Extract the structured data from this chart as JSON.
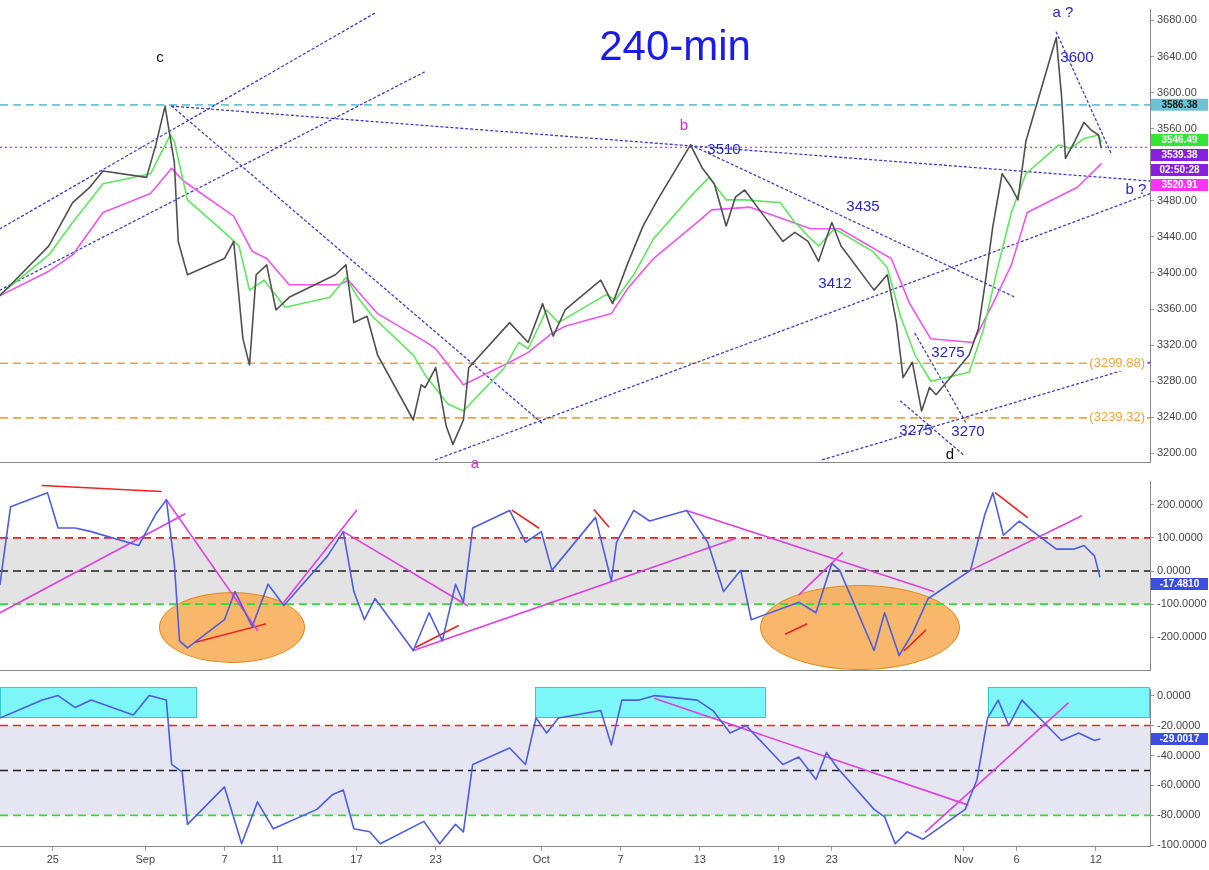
{
  "chart_data": [
    {
      "type": "line",
      "title": "240-min",
      "marker": "none",
      "tick_labels": "y",
      "xlim": [
        "--08-21T00:00",
        "--11-16T02:24"
      ],
      "ylim": [
        3190,
        3692
      ],
      "yticks": [
        {
          "value": 3200,
          "label": "3200.00"
        },
        {
          "value": 3240,
          "label": "3240.00"
        },
        {
          "value": 3280,
          "label": "3280.00"
        },
        {
          "value": 3320,
          "label": "3320.00"
        },
        {
          "value": 3360,
          "label": "3360.00"
        },
        {
          "value": 3400,
          "label": "3400.00"
        },
        {
          "value": 3440,
          "label": "3440.00"
        },
        {
          "value": 3480,
          "label": "3480.00"
        },
        {
          "value": 3560,
          "label": "3560.00"
        },
        {
          "value": 3600,
          "label": "3600.00"
        },
        {
          "value": 3640,
          "label": "3640.00"
        },
        {
          "value": 3680,
          "label": "3680.00"
        }
      ],
      "series": [
        {
          "color": "#505050",
          "x": [
            "--08-21T00:00",
            "--08-24T16:48",
            "--08-26T12:00",
            "--08-27T19:12",
            "--08-28T19:12",
            "--09-01T02:24",
            "--09-01T19:12",
            "--09-02T12:00",
            "--09-03T04:48",
            "--09-03T12:00",
            "--09-04T04:48",
            "--09-07T00:00",
            "--09-07T16:48",
            "--09-08T09:36",
            "--09-08T21:36",
            "--09-09T09:36",
            "--09-10T04:48",
            "--09-10T21:36",
            "--09-11T21:36",
            "--09-15T09:36",
            "--09-16T04:48",
            "--09-16T19:12",
            "--09-17T19:12",
            "--09-18T14:24",
            "--09-21T07:12",
            "--09-21T21:36",
            "--09-22T04:48",
            "--09-23T00:00",
            "--09-23T19:12",
            "--09-24T07:12",
            "--09-25T02:24",
            "--09-25T12:00",
            "--09-28T14:24",
            "--09-30T00:00",
            "--10-01T02:24",
            "--10-01T21:36",
            "--10-02T19:12",
            "--10-05T12:00",
            "--10-06T09:36",
            "--10-07T12:00",
            "--10-08T16:48",
            "--10-09T19:12",
            "--10-12T07:12",
            "--10-13T04:48",
            "--10-14T02:24",
            "--10-15T00:00",
            "--10-15T16:48",
            "--10-16T09:36",
            "--10-19T07:12",
            "--10-20T04:48",
            "--10-21T04:48",
            "--10-21T14:24",
            "--10-22T00:00",
            "--10-23T00:00",
            "--10-23T16:48",
            "--10-26T04:48",
            "--10-27T04:48",
            "--10-27T21:36",
            "--10-28T09:36",
            "--10-29T02:24",
            "--10-29T19:12",
            "--10-30T09:36",
            "--10-30T21:36",
            "--11-02T09:36",
            "--11-03T02:24",
            "--11-03T14:24",
            "--11-04T04:48",
            "--11-04T21:36",
            "--11-05T14:24",
            "--11-06T02:24",
            "--11-06T16:48",
            "--11-09T00:00",
            "--11-09T09:36",
            "--11-09T16:48",
            "--11-10T09:36",
            "--11-11T02:24",
            "--11-11T14:24",
            "--11-12T04:48",
            "--11-12T09:36"
          ],
          "values": [
            3375,
            3430,
            3478,
            3495,
            3513,
            3506,
            3542,
            3585,
            3523,
            3435,
            3398,
            3416,
            3435,
            3327,
            3298,
            3398,
            3409,
            3359,
            3373,
            3398,
            3409,
            3345,
            3352,
            3309,
            3237,
            3276,
            3273,
            3295,
            3230,
            3210,
            3237,
            3295,
            3345,
            3323,
            3366,
            3330,
            3359,
            3392,
            3366,
            3409,
            3452,
            3481,
            3542,
            3516,
            3499,
            3452,
            3484,
            3492,
            3435,
            3445,
            3435,
            3424,
            3413,
            3456,
            3430,
            3381,
            3398,
            3345,
            3284,
            3301,
            3247,
            3273,
            3265,
            3309,
            3338,
            3387,
            3452,
            3510,
            3495,
            3481,
            3546,
            3661,
            3596,
            3527,
            3546,
            3567,
            3559,
            3553,
            3539
          ]
        },
        {
          "color": "#5ee65e",
          "x": [
            "--08-21T00:00",
            "--08-24T16:48",
            "--08-26T12:00",
            "--08-28T19:12",
            "--09-01T09:36",
            "--09-02T21:36",
            "--09-03T04:48",
            "--09-04T04:48",
            "--09-07T00:00",
            "--09-08T02:24",
            "--09-08T21:36",
            "--09-10T00:00",
            "--09-11T14:24",
            "--09-15T00:00",
            "--09-16T04:48",
            "--09-17T02:24",
            "--09-18T04:48",
            "--09-21T07:12",
            "--09-22T04:48",
            "--09-23T21:36",
            "--09-25T02:24",
            "--09-28T04:48",
            "--09-29T07:12",
            "--09-30T00:00",
            "--10-01T09:36",
            "--10-02T07:12",
            "--10-05T21:36",
            "--10-06T14:24",
            "--10-08T00:00",
            "--10-09T12:00",
            "--10-12T12:00",
            "--10-13T16:48",
            "--10-15T00:00",
            "--10-16T09:36",
            "--10-19T02:24",
            "--10-20T04:48",
            "--10-20T12:00",
            "--10-21T09:36",
            "--10-22T00:00",
            "--10-23T04:48",
            "--10-26T02:24",
            "--10-27T04:48",
            "--10-28T04:48",
            "--10-29T07:12",
            "--10-30T12:00",
            "--11-02T09:36",
            "--11-03T12:00",
            "--11-04T12:00",
            "--11-05T14:24",
            "--11-06T16:48",
            "--11-09T04:48",
            "--11-10T02:24",
            "--11-11T02:24",
            "--11-12T04:48",
            "--11-12T09:36"
          ],
          "values": [
            3376,
            3420,
            3456,
            3499,
            3510,
            3553,
            3546,
            3481,
            3445,
            3430,
            3381,
            3392,
            3362,
            3373,
            3395,
            3373,
            3352,
            3309,
            3287,
            3255,
            3247,
            3295,
            3323,
            3316,
            3359,
            3345,
            3376,
            3370,
            3398,
            3438,
            3488,
            3506,
            3481,
            3481,
            3478,
            3456,
            3452,
            3438,
            3430,
            3449,
            3424,
            3406,
            3352,
            3309,
            3280,
            3290,
            3338,
            3402,
            3467,
            3510,
            3542,
            3538,
            3549,
            3553,
            3546
          ]
        },
        {
          "color": "#ee55ee",
          "x": [
            "--08-21T00:00",
            "--08-24T16:48",
            "--08-26T12:00",
            "--08-28T19:12",
            "--09-01T09:36",
            "--09-03T00:00",
            "--09-03T21:36",
            "--09-07T16:48",
            "--09-09T02:24",
            "--09-10T04:48",
            "--09-11T21:36",
            "--09-15T16:48",
            "--09-16T09:36",
            "--09-17T12:00",
            "--09-18T14:24",
            "--09-22T07:12",
            "--09-23T00:00",
            "--09-25T02:24",
            "--09-28T14:24",
            "--09-30T00:00",
            "--10-01T19:12",
            "--10-02T19:12",
            "--10-06T07:12",
            "--10-07T14:24",
            "--10-09T12:00",
            "--10-12T19:12",
            "--10-13T21:36",
            "--10-16T19:12",
            "--10-21T09:36",
            "--10-22T00:00",
            "--10-23T14:24",
            "--10-27T12:00",
            "--10-28T21:36",
            "--10-30T12:00",
            "--11-02T16:48",
            "--11-04T04:48",
            "--11-05T14:24",
            "--11-06T19:12",
            "--11-10T14:24",
            "--11-12T09:36"
          ],
          "values": [
            3375,
            3402,
            3420,
            3467,
            3488,
            3516,
            3502,
            3463,
            3424,
            3416,
            3387,
            3387,
            3392,
            3373,
            3355,
            3323,
            3316,
            3276,
            3301,
            3312,
            3333,
            3341,
            3355,
            3384,
            3416,
            3456,
            3470,
            3473,
            3449,
            3449,
            3449,
            3416,
            3366,
            3327,
            3323,
            3366,
            3409,
            3467,
            3495,
            3521
          ]
        },
        {
          "type": "line",
          "color": "#3b3bd0",
          "line_style": "dotted",
          "x": [
            "--08-21T00:00",
            "--09-18T12:00"
          ],
          "values": [
            3449,
            3689
          ]
        },
        {
          "type": "line",
          "color": "#3b3bd0",
          "line_style": "dotted",
          "x": [
            "--08-21T00:00",
            "--09-22T07:12"
          ],
          "values": [
            3381,
            3624
          ]
        },
        {
          "type": "line",
          "color": "#3b3bd0",
          "line_style": "dotted",
          "x": [
            "--09-03T00:00",
            "--10-01T02:24"
          ],
          "values": [
            3585,
            3233
          ]
        },
        {
          "type": "line",
          "color": "#3b3bd0",
          "line_style": "dotted",
          "x": [
            "--09-03T00:00",
            "--11-16T02:24"
          ],
          "values": [
            3585,
            3502
          ]
        },
        {
          "type": "line",
          "color": "#3b3bd0",
          "line_style": "dotted",
          "x": [
            "--09-23T00:00",
            "--11-16T02:24"
          ],
          "values": [
            3193,
            3488
          ]
        },
        {
          "type": "line",
          "color": "#3b3bd0",
          "line_style": "dotted",
          "x": [
            "--10-22T07:12",
            "--11-16T02:24"
          ],
          "values": [
            3193,
            3301
          ]
        },
        {
          "type": "line",
          "color": "#3b3bd0",
          "line_style": "dotted",
          "x": [
            "--10-12T07:12",
            "--11-05T21:36"
          ],
          "values": [
            3542,
            3373
          ]
        },
        {
          "type": "line",
          "color": "#3b3bd0",
          "line_style": "dotted",
          "x": [
            "--11-09T00:00",
            "--11-13T04:48"
          ],
          "values": [
            3667,
            3531
          ]
        },
        {
          "type": "line",
          "color": "#3b3bd0",
          "line_style": "dotted",
          "x": [
            "--10-29T07:12",
            "--11-02T04:48"
          ],
          "values": [
            3333,
            3233
          ]
        },
        {
          "type": "line",
          "color": "#3b3bd0",
          "line_style": "dotted",
          "x": [
            "--10-28T04:48",
            "--11-02T00:00"
          ],
          "values": [
            3258,
            3198
          ]
        }
      ],
      "ref_lines": [
        {
          "axis": "y",
          "value": 3586.38,
          "label": "3586.38",
          "color": "#6cc3d3",
          "line_style": "dashed"
        },
        {
          "axis": "y",
          "value": 3539.38,
          "color": "#8a1ee0",
          "line_style": "dotted"
        },
        {
          "axis": "y",
          "value": 3299.88,
          "label": "(3299.88)",
          "color": "#f2a43a",
          "line_style": "dashed"
        },
        {
          "axis": "y",
          "value": 3239.32,
          "label": "(3239.32)",
          "color": "#f2a43a",
          "line_style": "dashed"
        }
      ],
      "annotations": [
        "3546.49",
        "3539.38",
        "02:50:28",
        "3520.91",
        "c",
        "b",
        "3510",
        "3435",
        "3412",
        "3275",
        "3275",
        "3270",
        "d",
        "a",
        "a ?",
        "3600",
        "b ?"
      ]
    },
    {
      "type": "line",
      "marker": "none",
      "tick_labels": "y",
      "xlim": [
        "--08-21T00:00",
        "--11-16T02:24"
      ],
      "ylim": [
        -300,
        270
      ],
      "yticks": [
        {
          "value": -200,
          "label": "-200.0000"
        },
        {
          "value": -100,
          "label": "-100.0000"
        },
        {
          "value": 0,
          "label": "0.0000"
        },
        {
          "value": 100,
          "label": "100.0000"
        },
        {
          "value": 200,
          "label": "200.0000"
        }
      ],
      "bands": [
        {
          "axis": "y",
          "from": -100,
          "to": 100,
          "color": "#e3e3e3"
        }
      ],
      "ref_lines": [
        {
          "axis": "y",
          "value": 100,
          "color": "#ee2222",
          "line_style": "dashed"
        },
        {
          "axis": "y",
          "value": 0,
          "color": "#222222",
          "line_style": "dashed"
        },
        {
          "axis": "y",
          "value": -100,
          "color": "#33dd33",
          "line_style": "dashed"
        }
      ],
      "annotations": [
        "-17.4810"
      ],
      "series": [
        {
          "color": "#4d5ee0",
          "x": [
            "--08-21T00:00",
            "--08-21T19:12",
            "--08-24T14:24",
            "--08-25T09:36",
            "--08-26T16:48",
            "--08-27T21:36",
            "--08-31T12:00",
            "--09-01T19:12",
            "--09-02T14:24",
            "--09-03T04:48",
            "--09-03T14:24",
            "--09-04T04:48",
            "--09-07T00:00",
            "--09-07T19:12",
            "--09-09T02:24",
            "--09-10T07:12",
            "--09-11T12:00",
            "--09-14T19:12",
            "--09-16T00:00",
            "--09-16T19:12",
            "--09-17T14:24",
            "--09-18T09:36",
            "--09-21T07:12",
            "--09-22T12:00",
            "--09-23T12:00",
            "--09-24T12:00",
            "--09-25T02:24",
            "--09-25T19:12",
            "--09-28T14:24",
            "--09-29T19:12",
            "--10-01T00:00",
            "--10-01T19:12",
            "--10-05T02:24",
            "--10-06T07:12",
            "--10-06T16:48",
            "--10-08T00:00",
            "--10-09T04:48",
            "--10-12T00:00",
            "--10-13T14:24",
            "--10-14T19:12",
            "--10-16T02:24",
            "--10-16T21:36",
            "--10-20T12:00",
            "--10-21T19:12",
            "--10-23T00:00",
            "--10-23T14:24",
            "--10-26T04:48",
            "--10-27T00:00",
            "--10-28T02:24",
            "--10-29T02:24",
            "--10-30T07:12",
            "--11-02T12:00",
            "--11-03T14:24",
            "--11-04T04:48",
            "--11-05T00:00",
            "--11-06T04:48",
            "--11-09T00:00",
            "--11-10T07:12",
            "--11-11T02:24",
            "--11-11T21:36",
            "--11-12T07:12"
          ],
          "values": [
            -40,
            194,
            236,
            130,
            130,
            119,
            77,
            172,
            215,
            23,
            -211,
            -232,
            -147,
            -62,
            -168,
            -40,
            -104,
            45,
            119,
            -62,
            -147,
            -83,
            -240,
            -126,
            -211,
            -40,
            -94,
            130,
            183,
            87,
            119,
            2,
            162,
            -30,
            87,
            183,
            151,
            183,
            87,
            -62,
            2,
            -147,
            -94,
            -126,
            23,
            2,
            -240,
            -126,
            -255,
            -189,
            -83,
            2,
            172,
            236,
            108,
            151,
            66,
            66,
            77,
            45,
            -17
          ]
        },
        {
          "type": "line",
          "color": "#e040e0",
          "x": [
            "--08-21T00:00",
            "--09-04T00:00"
          ],
          "values": [
            -126,
            172
          ]
        },
        {
          "type": "line",
          "color": "#e040e0",
          "x": [
            "--09-02T14:24",
            "--09-09T12:00"
          ],
          "values": [
            215,
            -179
          ]
        },
        {
          "type": "line",
          "color": "#e040e0",
          "x": [
            "--09-11T12:00",
            "--09-17T00:00"
          ],
          "values": [
            -94,
            183
          ]
        },
        {
          "type": "line",
          "color": "#e040e0",
          "x": [
            "--09-16T00:00",
            "--09-25T09:36"
          ],
          "values": [
            119,
            -104
          ]
        },
        {
          "type": "line",
          "color": "#e040e0",
          "x": [
            "--09-21T07:12",
            "--10-15T16:48"
          ],
          "values": [
            -240,
            98
          ]
        },
        {
          "type": "line",
          "color": "#e040e0",
          "x": [
            "--10-12T00:00",
            "--10-30T16:48"
          ],
          "values": [
            183,
            -62
          ]
        },
        {
          "type": "line",
          "color": "#e040e0",
          "x": [
            "--10-20T12:00",
            "--10-23T19:12"
          ],
          "values": [
            -72,
            55
          ]
        },
        {
          "type": "line",
          "color": "#e040e0",
          "x": [
            "--11-02T12:00",
            "--11-10T21:36"
          ],
          "values": [
            2,
            166
          ]
        },
        {
          "type": "line",
          "color": "#ee2222",
          "x": [
            "--08-24T04:48",
            "--09-02T04:48"
          ],
          "values": [
            258,
            240
          ]
        },
        {
          "type": "line",
          "color": "#ee2222",
          "x": [
            "--09-04T19:12",
            "--09-10T02:24"
          ],
          "values": [
            -215,
            -160
          ]
        },
        {
          "type": "line",
          "color": "#ee2222",
          "x": [
            "--09-21T12:00",
            "--09-24T16:48"
          ],
          "values": [
            -230,
            -165
          ]
        },
        {
          "type": "line",
          "color": "#ee2222",
          "x": [
            "--09-28T19:12",
            "--09-30T19:12"
          ],
          "values": [
            183,
            130
          ]
        },
        {
          "type": "line",
          "color": "#ee2222",
          "x": [
            "--10-05T00:00",
            "--10-06T02:24"
          ],
          "values": [
            185,
            134
          ]
        },
        {
          "type": "line",
          "color": "#ee2222",
          "x": [
            "--10-19T12:00",
            "--10-21T02:24"
          ],
          "values": [
            -190,
            -160
          ]
        },
        {
          "type": "line",
          "color": "#ee2222",
          "x": [
            "--10-28T12:00",
            "--10-30T02:24"
          ],
          "values": [
            -240,
            -179
          ]
        },
        {
          "type": "line",
          "color": "#ee2222",
          "x": [
            "--11-04T09:36",
            "--11-06T19:12"
          ],
          "values": [
            236,
            162
          ]
        }
      ]
    },
    {
      "type": "line",
      "marker": "none",
      "xlim": [
        "--08-21T00:00",
        "--11-16T02:24"
      ],
      "ylim": [
        -101,
        4
      ],
      "xticks": [
        {
          "value": "--08-25",
          "label": "25"
        },
        {
          "value": "--09-01",
          "label": "Sep"
        },
        {
          "value": "--09-07",
          "label": "7"
        },
        {
          "value": "--09-11",
          "label": "11"
        },
        {
          "value": "--09-17",
          "label": "17"
        },
        {
          "value": "--09-23",
          "label": "23"
        },
        {
          "value": "--10-01",
          "label": "Oct"
        },
        {
          "value": "--10-07",
          "label": "7"
        },
        {
          "value": "--10-13",
          "label": "13"
        },
        {
          "value": "--10-19",
          "label": "19"
        },
        {
          "value": "--10-23",
          "label": "23"
        },
        {
          "value": "--11-02",
          "label": "Nov"
        },
        {
          "value": "--11-06",
          "label": "6"
        },
        {
          "value": "--11-12",
          "label": "12"
        }
      ],
      "yticks": [
        {
          "value": -100,
          "label": "-100.0000"
        },
        {
          "value": -80,
          "label": "-80.0000"
        },
        {
          "value": -60,
          "label": "-60.0000"
        },
        {
          "value": -40,
          "label": "-40.0000"
        },
        {
          "value": -20,
          "label": "-20.0000"
        },
        {
          "value": 0,
          "label": "0.0000"
        }
      ],
      "bands": [
        {
          "axis": "y",
          "from": -80,
          "to": -20,
          "color": "#e6e6f2"
        }
      ],
      "ref_lines": [
        {
          "axis": "y",
          "value": -20,
          "color": "#ee2222",
          "line_style": "dashed"
        },
        {
          "axis": "y",
          "value": -50,
          "color": "#222222",
          "line_style": "dashed"
        },
        {
          "axis": "y",
          "value": -80,
          "color": "#33dd33",
          "line_style": "dashed"
        }
      ],
      "annotations": [
        "-29.0017"
      ],
      "series": [
        {
          "color": "#4d5ee0",
          "x": [
            "--08-21T00:00",
            "--08-24T04:48",
            "--08-25T09:36",
            "--08-26T16:48",
            "--08-27T21:36",
            "--08-31T02:24",
            "--09-01T07:12",
            "--09-02T14:24",
            "--09-03T00:00",
            "--09-03T19:12",
            "--09-04T04:48",
            "--09-07T00:00",
            "--09-08T07:12",
            "--09-09T12:00",
            "--09-10T16:48",
            "--09-14T00:00",
            "--09-15T04:48",
            "--09-16T00:00",
            "--09-16T19:12",
            "--09-18T00:00",
            "--09-18T19:12",
            "--09-22T02:24",
            "--09-23T07:12",
            "--09-24T12:00",
            "--09-25T02:24",
            "--09-25T19:12",
            "--09-28T14:24",
            "--09-29T19:12",
            "--09-30T14:24",
            "--10-01T09:36",
            "--10-02T07:12",
            "--10-05T12:00",
            "--10-06T07:12",
            "--10-07T02:24",
            "--10-08T09:36",
            "--10-09T14:24",
            "--10-12T19:12",
            "--10-14T00:00",
            "--10-15T07:12",
            "--10-16T12:00",
            "--10-19T07:12",
            "--10-20T12:00",
            "--10-21T19:12",
            "--10-22T14:24",
            "--10-23T09:36",
            "--10-26T04:48",
            "--10-27T00:00",
            "--10-27T19:12",
            "--10-28T16:48",
            "--10-29T21:36",
            "--11-02T02:24",
            "--11-03T00:00",
            "--11-03T19:12",
            "--11-04T14:24",
            "--11-05T09:36",
            "--11-06T09:36",
            "--11-09T09:36",
            "--11-10T16:48",
            "--11-11T21:36",
            "--11-12T07:12"
          ],
          "values": [
            -15,
            -3,
            0,
            -8,
            -3,
            -13,
            0,
            -3,
            -46,
            -51,
            -86,
            -61,
            -99,
            -71,
            -89,
            -76,
            -66,
            -63,
            -89,
            -91,
            -99,
            -84,
            -99,
            -86,
            -91,
            -46,
            -35,
            -46,
            -15,
            -25,
            -15,
            -10,
            -33,
            -3,
            -3,
            0,
            -3,
            -10,
            -25,
            -20,
            -46,
            -41,
            -56,
            -38,
            -48,
            -76,
            -81,
            -99,
            -91,
            -96,
            -76,
            -56,
            -15,
            -3,
            -20,
            -3,
            -30,
            -25,
            -30,
            -29
          ]
        },
        {
          "type": "line",
          "color": "#e040e0",
          "x": [
            "--10-09T14:24",
            "--11-02T07:12"
          ],
          "values": [
            -2,
            -73
          ]
        },
        {
          "type": "line",
          "color": "#e040e0",
          "x": [
            "--10-30T02:24",
            "--11-09T21:36"
          ],
          "values": [
            -91,
            -5
          ]
        }
      ]
    }
  ]
}
